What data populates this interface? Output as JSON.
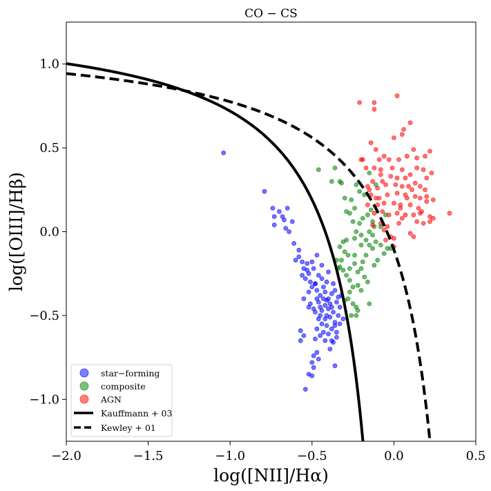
{
  "chart_data": {
    "type": "scatter",
    "title": "CO − CS",
    "xlabel": "log([NII]/Hα)",
    "ylabel": "log([OIII]/Hβ)",
    "xlim": [
      -2.0,
      0.5
    ],
    "ylim": [
      -1.25,
      1.25
    ],
    "xticks": [
      -2.0,
      -1.5,
      -1.0,
      -0.5,
      0.0,
      0.5
    ],
    "xtick_labels": [
      "−2.0",
      "−1.5",
      "−1.0",
      "−0.5",
      "0.0",
      "0.5"
    ],
    "yticks": [
      -1.0,
      -0.5,
      0.0,
      0.5,
      1.0
    ],
    "ytick_labels": [
      "−1.0",
      "−0.5",
      "0.0",
      "0.5",
      "1.0"
    ],
    "grid": false,
    "legend_position": "bottom-left",
    "series": [
      {
        "name": "star−forming",
        "kind": "points",
        "color": "#0000ff",
        "points": [
          [
            -1.04,
            0.47
          ],
          [
            -0.79,
            0.24
          ],
          [
            -0.74,
            0.14
          ],
          [
            -0.73,
            0.09
          ],
          [
            -0.73,
            0.04
          ],
          [
            -0.7,
            0.12
          ],
          [
            -0.68,
            0.09
          ],
          [
            -0.67,
            0.07
          ],
          [
            -0.65,
            0.14
          ],
          [
            -0.66,
            0.02
          ],
          [
            -0.64,
            0.0
          ],
          [
            -0.62,
            0.06
          ],
          [
            -0.61,
            -0.07
          ],
          [
            -0.58,
            -0.11
          ],
          [
            -0.56,
            -0.18
          ],
          [
            -0.55,
            -0.22
          ],
          [
            -0.53,
            -0.19
          ],
          [
            -0.52,
            -0.25
          ],
          [
            -0.5,
            -0.18
          ],
          [
            -0.49,
            -0.22
          ],
          [
            -0.54,
            -0.28
          ],
          [
            -0.51,
            -0.3
          ],
          [
            -0.48,
            -0.31
          ],
          [
            -0.46,
            -0.26
          ],
          [
            -0.44,
            -0.2
          ],
          [
            -0.47,
            -0.35
          ],
          [
            -0.45,
            -0.38
          ],
          [
            -0.43,
            -0.33
          ],
          [
            -0.41,
            -0.3
          ],
          [
            -0.4,
            -0.24
          ],
          [
            -0.52,
            -0.36
          ],
          [
            -0.55,
            -0.4
          ],
          [
            -0.51,
            -0.43
          ],
          [
            -0.49,
            -0.46
          ],
          [
            -0.46,
            -0.42
          ],
          [
            -0.44,
            -0.47
          ],
          [
            -0.42,
            -0.44
          ],
          [
            -0.4,
            -0.4
          ],
          [
            -0.38,
            -0.37
          ],
          [
            -0.36,
            -0.35
          ],
          [
            -0.35,
            -0.42
          ],
          [
            -0.37,
            -0.48
          ],
          [
            -0.39,
            -0.51
          ],
          [
            -0.41,
            -0.56
          ],
          [
            -0.43,
            -0.6
          ],
          [
            -0.45,
            -0.62
          ],
          [
            -0.47,
            -0.58
          ],
          [
            -0.38,
            -0.58
          ],
          [
            -0.36,
            -0.54
          ],
          [
            -0.34,
            -0.5
          ],
          [
            -0.33,
            -0.45
          ],
          [
            -0.35,
            -0.63
          ],
          [
            -0.37,
            -0.66
          ],
          [
            -0.39,
            -0.7
          ],
          [
            -0.47,
            -0.72
          ],
          [
            -0.5,
            -0.78
          ],
          [
            -0.52,
            -0.85
          ],
          [
            -0.54,
            -0.94
          ],
          [
            -0.49,
            -0.74
          ],
          [
            -0.46,
            -0.76
          ],
          [
            -0.55,
            -0.62
          ],
          [
            -0.57,
            -0.59
          ],
          [
            -0.5,
            -0.86
          ],
          [
            -0.36,
            -0.8
          ],
          [
            -0.33,
            -0.55
          ],
          [
            -0.31,
            -0.52
          ],
          [
            -0.32,
            -0.38
          ],
          [
            -0.45,
            -0.5
          ],
          [
            -0.42,
            -0.52
          ],
          [
            -0.48,
            -0.48
          ],
          [
            -0.43,
            -0.4
          ],
          [
            -0.39,
            -0.43
          ],
          [
            -0.5,
            -0.33
          ],
          [
            -0.56,
            -0.26
          ],
          [
            -0.6,
            -0.17
          ],
          [
            -0.58,
            -0.15
          ],
          [
            -0.47,
            -0.14
          ],
          [
            -0.44,
            -0.28
          ],
          [
            -0.42,
            -0.36
          ],
          [
            -0.37,
            -0.31
          ],
          [
            -0.34,
            -0.39
          ],
          [
            -0.4,
            -0.46
          ],
          [
            -0.44,
            -0.55
          ],
          [
            -0.4,
            -0.61
          ],
          [
            -0.36,
            -0.56
          ],
          [
            -0.53,
            -0.23
          ],
          [
            -0.52,
            -0.45
          ],
          [
            -0.47,
            -0.4
          ],
          [
            -0.46,
            -0.52
          ],
          [
            -0.41,
            -0.5
          ],
          [
            -0.38,
            -0.45
          ],
          [
            -0.42,
            -0.65
          ],
          [
            -0.48,
            -0.64
          ],
          [
            -0.57,
            -0.65
          ],
          [
            -0.49,
            -0.81
          ],
          [
            -0.38,
            -0.65
          ],
          [
            -0.35,
            -0.6
          ],
          [
            -0.48,
            -0.31
          ],
          [
            -0.45,
            -0.45
          ],
          [
            -0.41,
            -0.41
          ]
        ]
      },
      {
        "name": "composite",
        "kind": "points",
        "color": "#008000",
        "points": [
          [
            -0.46,
            0.37
          ],
          [
            -0.36,
            0.38
          ],
          [
            -0.33,
            0.3
          ],
          [
            -0.3,
            0.2
          ],
          [
            -0.32,
            0.29
          ],
          [
            -0.38,
            0.3
          ],
          [
            -0.23,
            0.28
          ],
          [
            -0.21,
            0.24
          ],
          [
            -0.18,
            0.22
          ],
          [
            -0.15,
            0.35
          ],
          [
            -0.26,
            0.19
          ],
          [
            -0.24,
            0.14
          ],
          [
            -0.27,
            0.11
          ],
          [
            -0.25,
            0.06
          ],
          [
            -0.21,
            0.05
          ],
          [
            -0.19,
            0.08
          ],
          [
            -0.16,
            0.1
          ],
          [
            -0.14,
            0.13
          ],
          [
            -0.13,
            0.06
          ],
          [
            -0.12,
            0.03
          ],
          [
            -0.23,
            0.0
          ],
          [
            -0.2,
            -0.02
          ],
          [
            -0.17,
            -0.05
          ],
          [
            -0.15,
            -0.08
          ],
          [
            -0.13,
            -0.1
          ],
          [
            -0.11,
            -0.06
          ],
          [
            -0.08,
            -0.08
          ],
          [
            -0.06,
            -0.13
          ],
          [
            -0.04,
            -0.1
          ],
          [
            -0.02,
            -0.1
          ],
          [
            -0.31,
            -0.06
          ],
          [
            -0.33,
            -0.09
          ],
          [
            -0.3,
            -0.12
          ],
          [
            -0.28,
            -0.14
          ],
          [
            -0.32,
            -0.17
          ],
          [
            -0.35,
            -0.17
          ],
          [
            -0.33,
            -0.21
          ],
          [
            -0.31,
            -0.23
          ],
          [
            -0.29,
            -0.26
          ],
          [
            -0.27,
            -0.29
          ],
          [
            -0.24,
            -0.14
          ],
          [
            -0.24,
            -0.19
          ],
          [
            -0.22,
            -0.24
          ],
          [
            -0.2,
            -0.22
          ],
          [
            -0.18,
            -0.27
          ],
          [
            -0.16,
            -0.3
          ],
          [
            -0.19,
            -0.18
          ],
          [
            -0.17,
            -0.14
          ],
          [
            -0.25,
            -0.33
          ],
          [
            -0.27,
            -0.36
          ],
          [
            -0.28,
            -0.4
          ],
          [
            -0.3,
            -0.41
          ],
          [
            -0.25,
            -0.43
          ],
          [
            -0.23,
            -0.45
          ],
          [
            -0.26,
            -0.5
          ],
          [
            -0.23,
            -0.5
          ],
          [
            -0.22,
            -0.47
          ],
          [
            -0.15,
            -0.43
          ],
          [
            -0.22,
            -0.32
          ],
          [
            -0.2,
            -0.35
          ],
          [
            -0.1,
            -0.17
          ],
          [
            -0.12,
            -0.2
          ],
          [
            -0.29,
            -0.05
          ],
          [
            -0.29,
            0.12
          ],
          [
            -0.15,
            0.0
          ],
          [
            -0.08,
            0.03
          ],
          [
            -0.13,
            -0.02
          ],
          [
            -0.11,
            0.28
          ],
          [
            -0.05,
            0.1
          ],
          [
            -0.2,
            -0.08
          ],
          [
            -0.24,
            -0.04
          ],
          [
            -0.34,
            -0.22
          ],
          [
            -0.27,
            -0.22
          ]
        ]
      },
      {
        "name": "AGN",
        "kind": "points",
        "color": "#ff0000",
        "points": [
          [
            0.02,
            0.81
          ],
          [
            -0.12,
            0.77
          ],
          [
            -0.21,
            0.77
          ],
          [
            -0.12,
            0.73
          ],
          [
            0.1,
            0.65
          ],
          [
            0.06,
            0.61
          ],
          [
            0.05,
            0.58
          ],
          [
            0.0,
            0.56
          ],
          [
            -0.14,
            0.53
          ],
          [
            -0.11,
            0.49
          ],
          [
            0.12,
            0.49
          ],
          [
            0.22,
            0.48
          ],
          [
            0.14,
            0.44
          ],
          [
            0.19,
            0.45
          ],
          [
            0.08,
            0.45
          ],
          [
            -0.06,
            0.45
          ],
          [
            -0.2,
            0.43
          ],
          [
            -0.19,
            0.43
          ],
          [
            -0.09,
            0.43
          ],
          [
            -0.03,
            0.43
          ],
          [
            0.03,
            0.43
          ],
          [
            -0.17,
            0.38
          ],
          [
            -0.12,
            0.38
          ],
          [
            -0.08,
            0.37
          ],
          [
            -0.01,
            0.38
          ],
          [
            0.05,
            0.37
          ],
          [
            0.14,
            0.38
          ],
          [
            0.18,
            0.37
          ],
          [
            0.23,
            0.35
          ],
          [
            -0.13,
            0.3
          ],
          [
            -0.07,
            0.3
          ],
          [
            -0.02,
            0.33
          ],
          [
            0.02,
            0.32
          ],
          [
            0.07,
            0.32
          ],
          [
            0.1,
            0.34
          ],
          [
            0.2,
            0.32
          ],
          [
            -0.16,
            0.27
          ],
          [
            -0.1,
            0.26
          ],
          [
            -0.05,
            0.28
          ],
          [
            0.01,
            0.28
          ],
          [
            0.05,
            0.27
          ],
          [
            0.11,
            0.25
          ],
          [
            0.16,
            0.27
          ],
          [
            0.19,
            0.25
          ],
          [
            -0.14,
            0.22
          ],
          [
            -0.09,
            0.2
          ],
          [
            -0.04,
            0.22
          ],
          [
            0.02,
            0.23
          ],
          [
            0.07,
            0.22
          ],
          [
            0.13,
            0.21
          ],
          [
            0.2,
            0.21
          ],
          [
            -0.1,
            0.16
          ],
          [
            -0.06,
            0.17
          ],
          [
            0.0,
            0.17
          ],
          [
            0.04,
            0.16
          ],
          [
            0.1,
            0.16
          ],
          [
            0.15,
            0.14
          ],
          [
            0.2,
            0.18
          ],
          [
            -0.16,
            0.16
          ],
          [
            -0.12,
            0.11
          ],
          [
            -0.07,
            0.12
          ],
          [
            -0.03,
            0.1
          ],
          [
            0.02,
            0.11
          ],
          [
            0.07,
            0.1
          ],
          [
            0.12,
            0.1
          ],
          [
            0.17,
            0.12
          ],
          [
            0.22,
            0.09
          ],
          [
            0.34,
            0.11
          ],
          [
            -0.13,
            0.04
          ],
          [
            -0.08,
            0.05
          ],
          [
            -0.04,
            0.03
          ],
          [
            0.03,
            0.05
          ],
          [
            0.1,
            -0.01
          ],
          [
            0.12,
            -0.03
          ],
          [
            0.05,
            0.08
          ],
          [
            0.14,
            0.06
          ],
          [
            0.18,
            0.05
          ],
          [
            0.24,
            0.08
          ],
          [
            -0.05,
            -0.05
          ],
          [
            -0.02,
            -0.03
          ],
          [
            -0.15,
            0.25
          ],
          [
            0.08,
            0.2
          ],
          [
            0.13,
            0.29
          ],
          [
            0.24,
            0.19
          ],
          [
            -0.08,
            0.34
          ],
          [
            0.16,
            0.11
          ],
          [
            0.22,
            0.06
          ],
          [
            -0.06,
            0.01
          ],
          [
            0.0,
            -0.04
          ],
          [
            0.0,
            -0.09
          ],
          [
            0.04,
            0.14
          ],
          [
            -0.11,
            0.2
          ],
          [
            0.09,
            0.27
          ],
          [
            0.16,
            0.2
          ]
        ]
      }
    ],
    "lines": [
      {
        "name": "Kauffmann+03",
        "style": "solid",
        "color": "#000000",
        "formula": "y = 0.61/(x - 0.05) + 1.3",
        "x_range": [
          -2.0,
          -0.185
        ]
      },
      {
        "name": "Kewley+01",
        "style": "dashed",
        "color": "#000000",
        "formula": "y = 0.61/(x - 0.47) + 1.19",
        "x_range": [
          -2.0,
          0.218
        ]
      }
    ],
    "legend": [
      {
        "label": "star−forming",
        "marker": "circle",
        "color": "#0000ff"
      },
      {
        "label": "composite",
        "marker": "circle",
        "color": "#008000"
      },
      {
        "label": "AGN",
        "marker": "circle",
        "color": "#ff0000"
      },
      {
        "label": "Kauffmann + 03",
        "marker": "solid-line",
        "color": "#000000"
      },
      {
        "label": "Kewley + 01",
        "marker": "dashed-line",
        "color": "#000000"
      }
    ]
  }
}
